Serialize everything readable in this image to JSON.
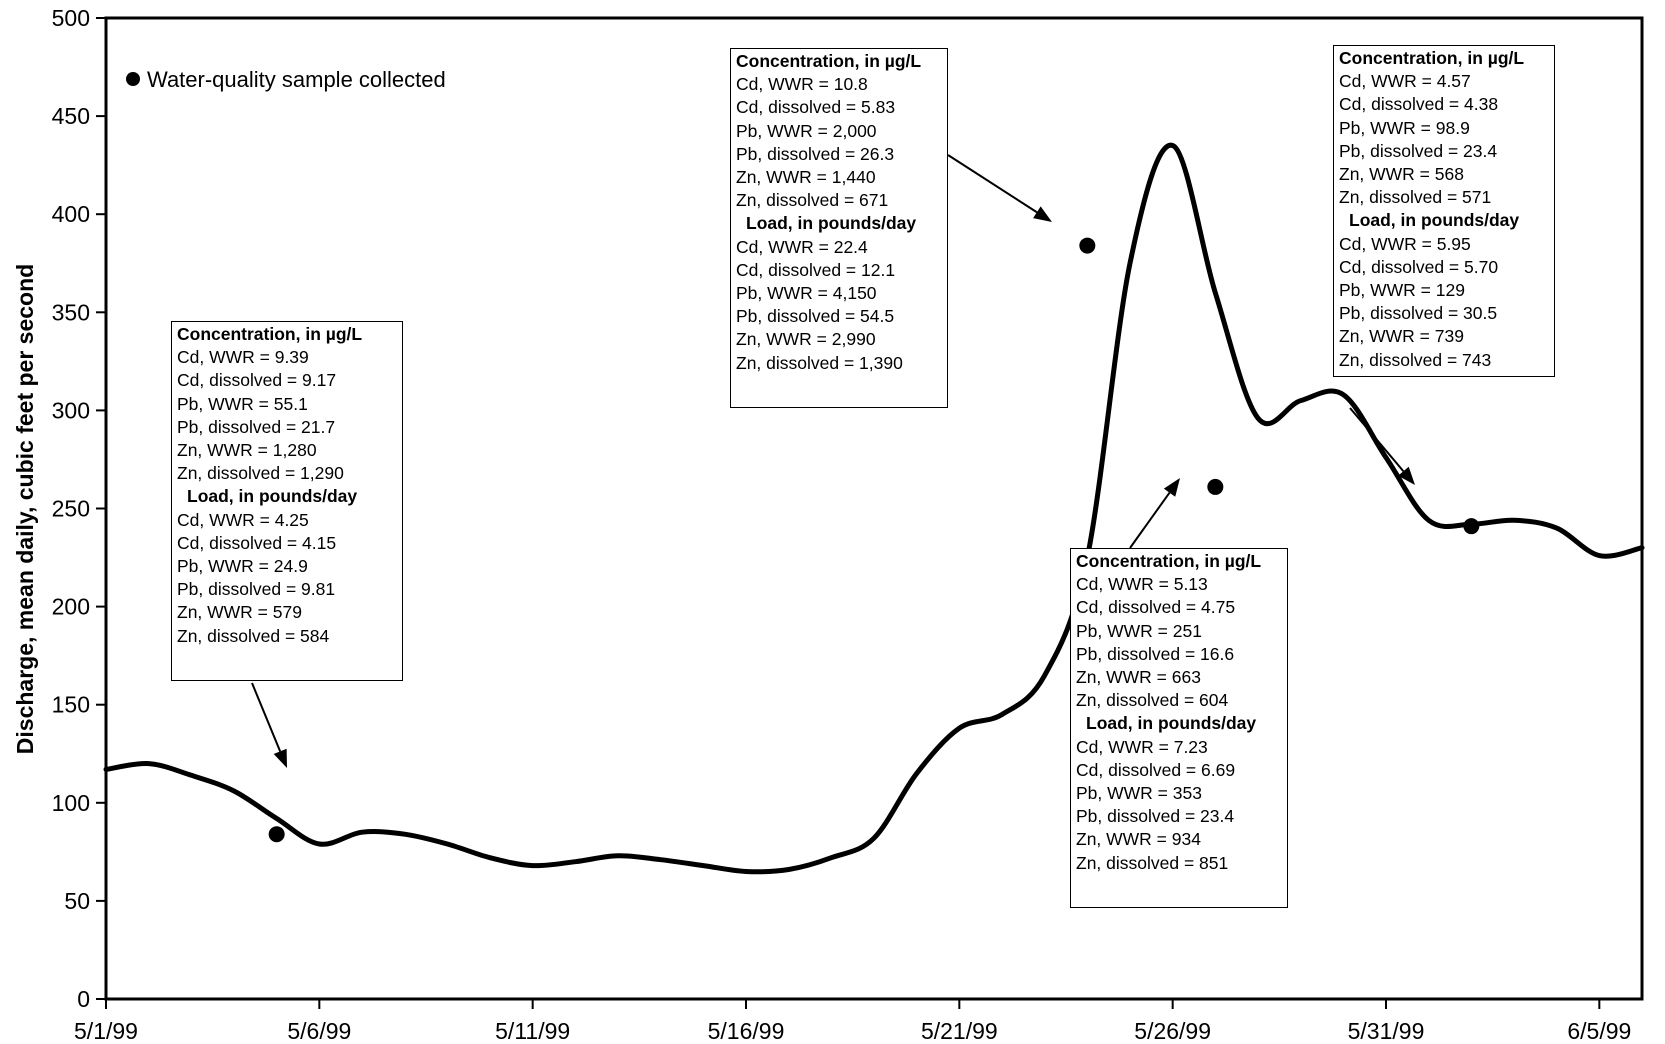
{
  "chart_data": {
    "type": "line",
    "title": "",
    "xlabel": "",
    "ylabel": "Discharge, mean daily, cubic feet per second",
    "ylim": [
      0,
      500
    ],
    "y_ticks": [
      0,
      50,
      100,
      150,
      200,
      250,
      300,
      350,
      400,
      450,
      500
    ],
    "xlim": [
      "1999-05-01",
      "1999-06-06"
    ],
    "x_tick_labels": [
      "5/1/99",
      "5/6/99",
      "5/11/99",
      "5/16/99",
      "5/21/99",
      "5/26/99",
      "5/31/99",
      "6/5/99"
    ],
    "x_tick_dates": [
      "1999-05-01",
      "1999-05-06",
      "1999-05-11",
      "1999-05-16",
      "1999-05-21",
      "1999-05-26",
      "1999-05-31",
      "1999-06-05"
    ],
    "grid": false,
    "legend": {
      "position": "top-left",
      "label": "Water-quality sample collected"
    },
    "series": [
      {
        "type": "line",
        "x": [
          "1999-05-01",
          "1999-05-02",
          "1999-05-03",
          "1999-05-04",
          "1999-05-05",
          "1999-05-06",
          "1999-05-07",
          "1999-05-08",
          "1999-05-09",
          "1999-05-10",
          "1999-05-11",
          "1999-05-12",
          "1999-05-13",
          "1999-05-14",
          "1999-05-15",
          "1999-05-16",
          "1999-05-17",
          "1999-05-18",
          "1999-05-19",
          "1999-05-20",
          "1999-05-21",
          "1999-05-22",
          "1999-05-23",
          "1999-05-24",
          "1999-05-25",
          "1999-05-26",
          "1999-05-27",
          "1999-05-28",
          "1999-05-29",
          "1999-05-30",
          "1999-05-31",
          "1999-06-01",
          "1999-06-02",
          "1999-06-03",
          "1999-06-04",
          "1999-06-05",
          "1999-06-06"
        ],
        "y": [
          117,
          120,
          114,
          106,
          92,
          79,
          85,
          84,
          79,
          72,
          68,
          70,
          73,
          71,
          68,
          65,
          66,
          72,
          82,
          115,
          138,
          145,
          165,
          225,
          375,
          435,
          360,
          296,
          305,
          308,
          276,
          244,
          242,
          244,
          240,
          226,
          230
        ]
      },
      {
        "type": "scatter",
        "x": [
          "1999-05-05",
          "1999-05-24",
          "1999-05-27",
          "1999-06-02"
        ],
        "y": [
          84,
          384,
          261,
          241
        ]
      }
    ],
    "annotations": [
      {
        "sample_date": "1999-05-05",
        "concentration_header": "Concentration, in µg/L",
        "concentration": [
          "Cd, WWR = 9.39",
          "Cd, dissolved = 9.17",
          "Pb, WWR = 55.1",
          "Pb, dissolved = 21.7",
          "Zn, WWR = 1,280",
          "Zn, dissolved = 1,290"
        ],
        "load_header": "Load, in pounds/day",
        "load": [
          "Cd, WWR = 4.25",
          "Cd, dissolved = 4.15",
          "Pb, WWR = 24.9",
          "Pb, dissolved = 9.81",
          "Zn, WWR = 579",
          "Zn, dissolved = 584"
        ]
      },
      {
        "sample_date": "1999-05-24",
        "concentration_header": "Concentration, in µg/L",
        "concentration": [
          "Cd, WWR = 10.8",
          "Cd, dissolved = 5.83",
          "Pb, WWR = 2,000",
          "Pb, dissolved = 26.3",
          "Zn, WWR = 1,440",
          "Zn, dissolved = 671"
        ],
        "load_header": "Load, in pounds/day",
        "load": [
          "Cd, WWR = 22.4",
          "Cd, dissolved = 12.1",
          "Pb, WWR = 4,150",
          "Pb, dissolved = 54.5",
          "Zn, WWR = 2,990",
          "Zn, dissolved = 1,390"
        ]
      },
      {
        "sample_date": "1999-05-27",
        "concentration_header": "Concentration, in µg/L",
        "concentration": [
          "Cd, WWR = 5.13",
          "Cd, dissolved = 4.75",
          "Pb, WWR = 251",
          "Pb, dissolved = 16.6",
          "Zn, WWR = 663",
          "Zn, dissolved = 604"
        ],
        "load_header": "Load, in pounds/day",
        "load": [
          "Cd, WWR = 7.23",
          "Cd, dissolved = 6.69",
          "Pb, WWR = 353",
          "Pb, dissolved = 23.4",
          "Zn, WWR = 934",
          "Zn, dissolved = 851"
        ]
      },
      {
        "sample_date": "1999-06-02",
        "concentration_header": "Concentration, in µg/L",
        "concentration": [
          "Cd, WWR = 4.57",
          "Cd, dissolved = 4.38",
          "Pb, WWR = 98.9",
          "Pb, dissolved = 23.4",
          "Zn, WWR = 568",
          "Zn, dissolved = 571"
        ],
        "load_header": "Load, in pounds/day",
        "load": [
          "Cd, WWR = 5.95",
          "Cd, dissolved = 5.70",
          "Pb, WWR = 129",
          "Pb, dissolved = 30.5",
          "Zn, WWR = 739",
          "Zn, dissolved = 743"
        ]
      }
    ]
  }
}
